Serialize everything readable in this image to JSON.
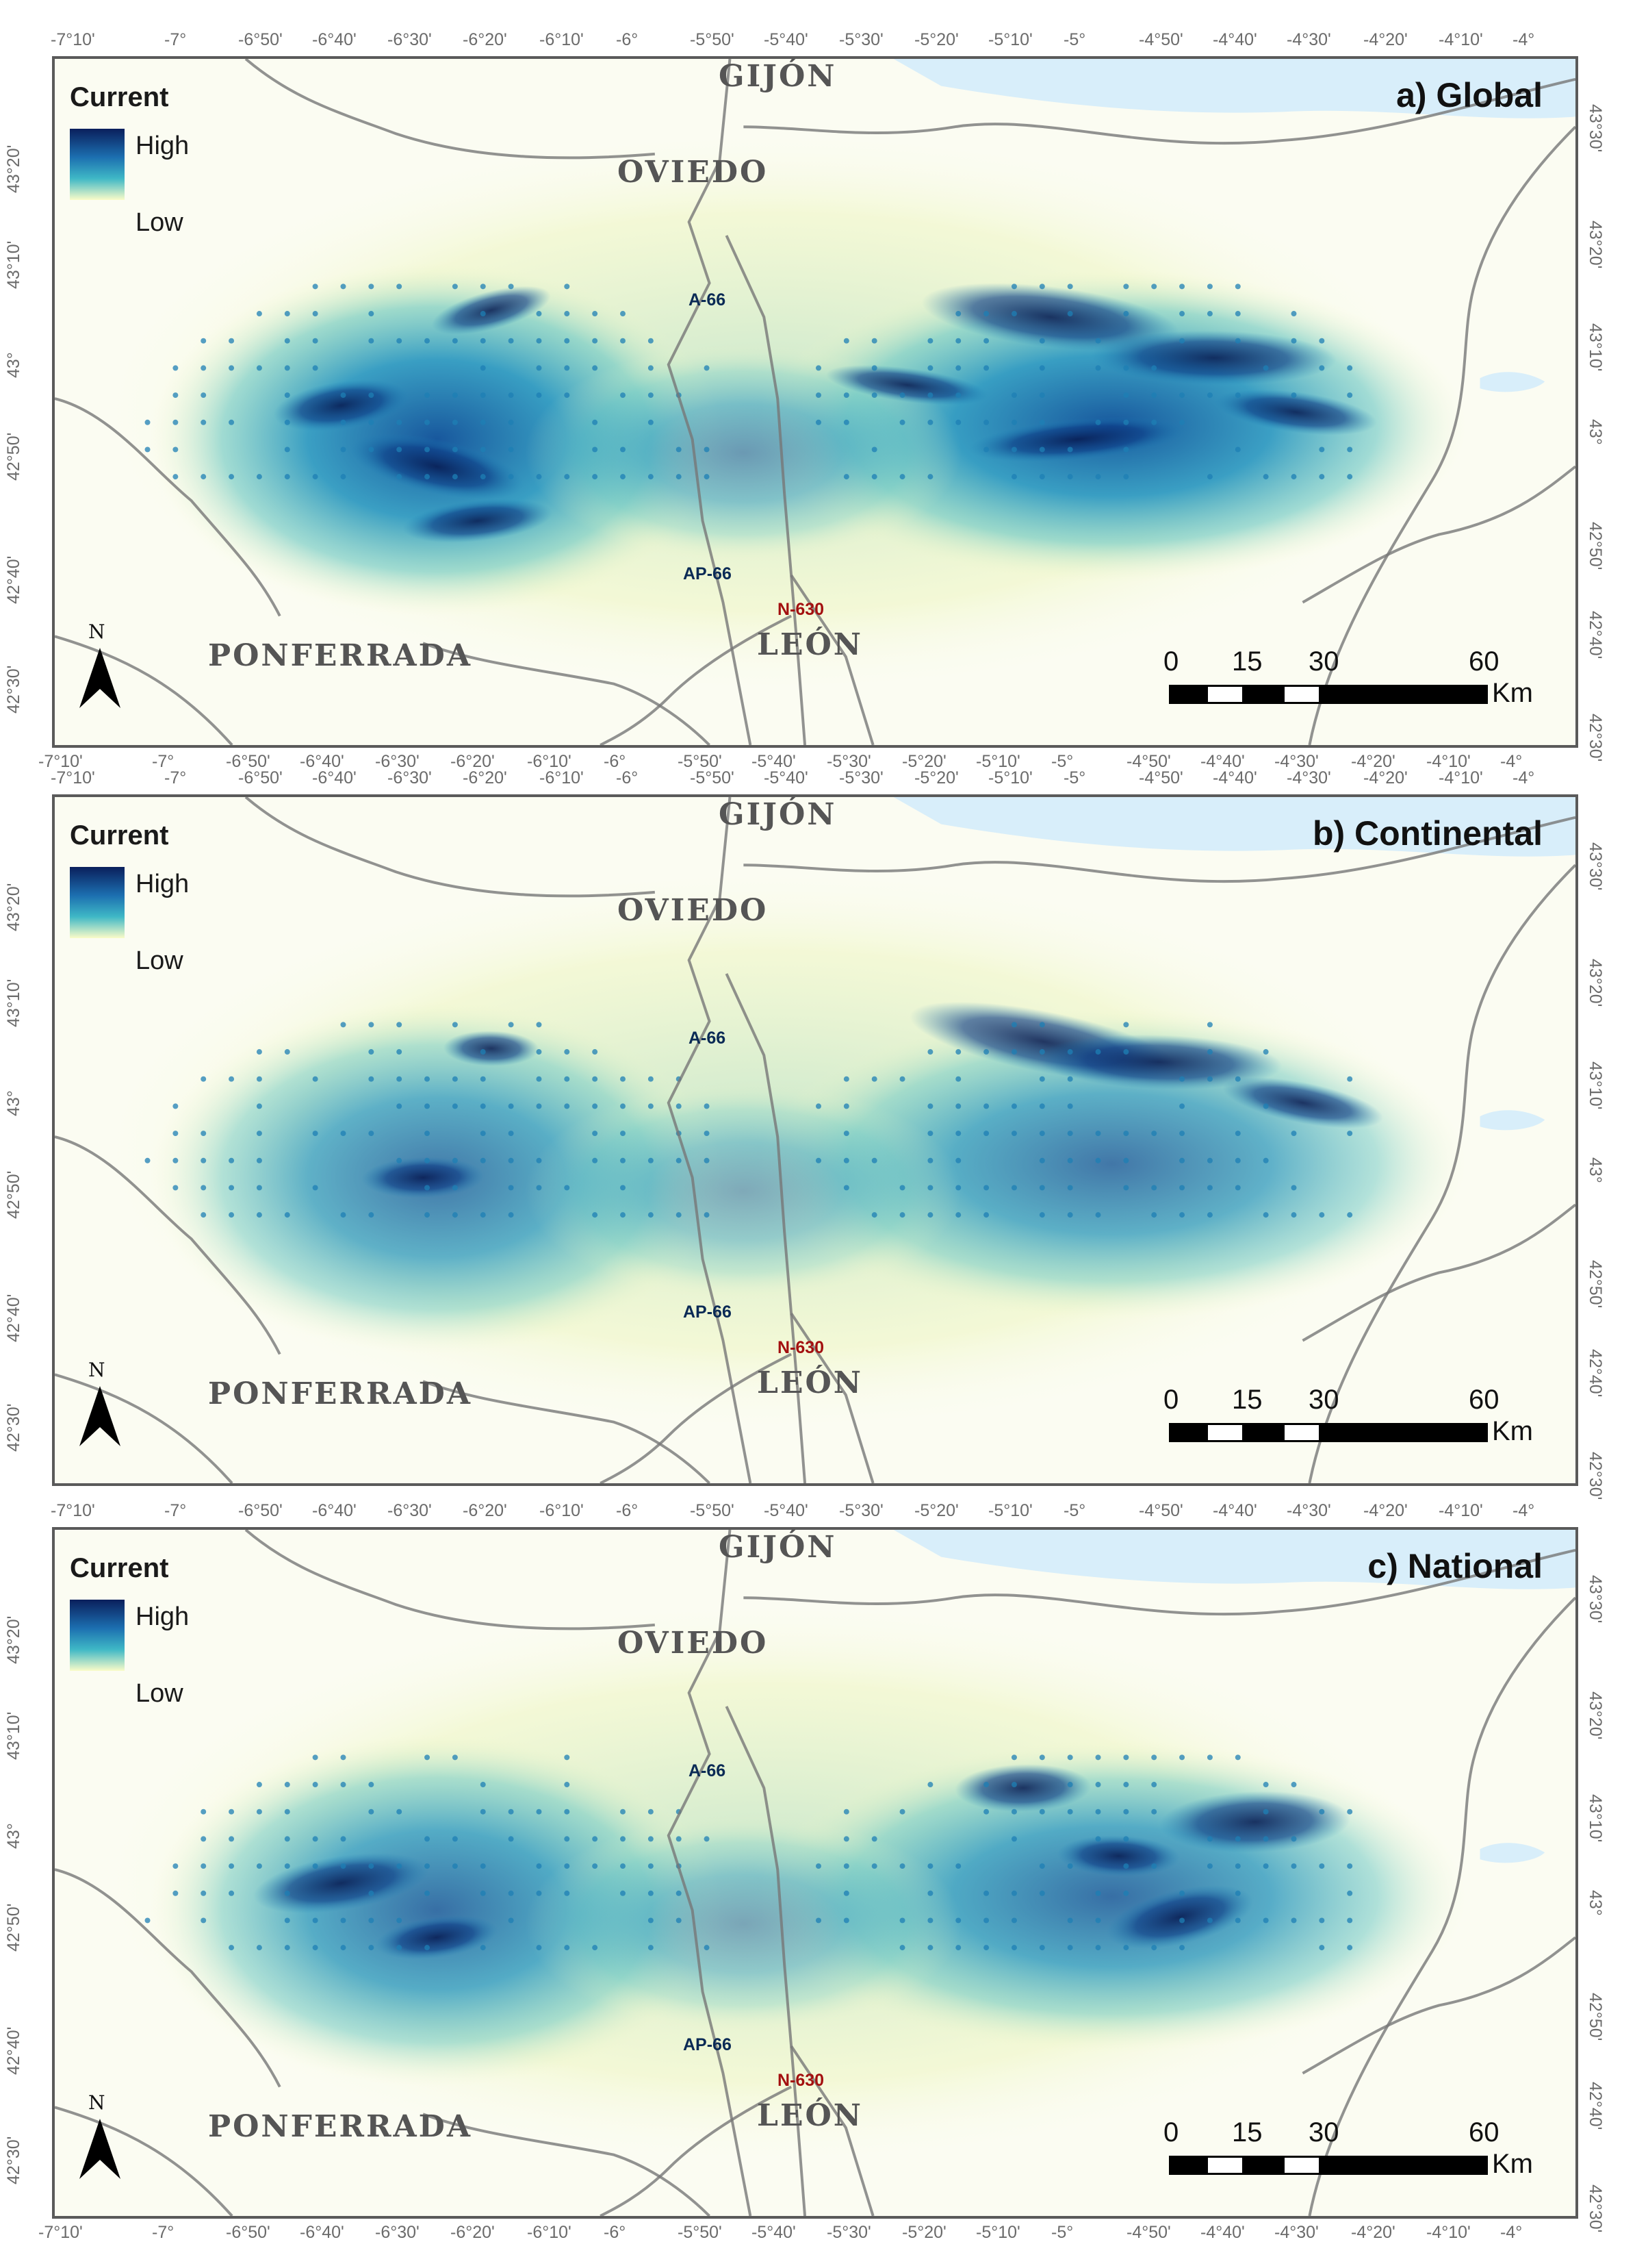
{
  "top_axis_labels": [
    "-7°10'",
    "-7°",
    "-6°50'",
    "-6°40'",
    "-6°30'",
    "-6°20'",
    "-6°10'",
    "-6°",
    "-5°50'",
    "-5°40'",
    "-5°30'",
    "-5°20'",
    "-5°10'",
    "-5°",
    "-4°50'",
    "-4°40'",
    "-4°30'",
    "-4°20'",
    "-4°10'",
    "-4°"
  ],
  "left_axis_labels": [
    "43°20'",
    "43°10'",
    "43°",
    "42°50'",
    "42°40'",
    "42°30'"
  ],
  "right_axis_labels": [
    "43°30'",
    "43°20'",
    "43°10'",
    "43°",
    "42°50'",
    "42°40'",
    "42°30'"
  ],
  "legend": {
    "title": "Current",
    "high": "High",
    "low": "Low"
  },
  "cities": {
    "gijon": "GIJÓN",
    "oviedo": "OVIEDO",
    "ponferrada": "PONFERRADA",
    "leon": "LEÓN"
  },
  "roads": {
    "a66": "A-66",
    "ap66": "AP-66",
    "n630": "N-630"
  },
  "north_label": "N",
  "scale": {
    "labels": [
      "0",
      "15",
      "30",
      "60"
    ],
    "unit": "Km"
  },
  "panels": [
    {
      "title": "a) Global",
      "intensity": 1.0
    },
    {
      "title": "b) Continental",
      "intensity": 0.8
    },
    {
      "title": "c) National",
      "intensity": 0.85
    }
  ],
  "colors": {
    "high": "#0a1f5c",
    "mid": "#1c8fb8",
    "low": "#fafcc8",
    "sea": "#d8eefa",
    "road": "#777777"
  }
}
